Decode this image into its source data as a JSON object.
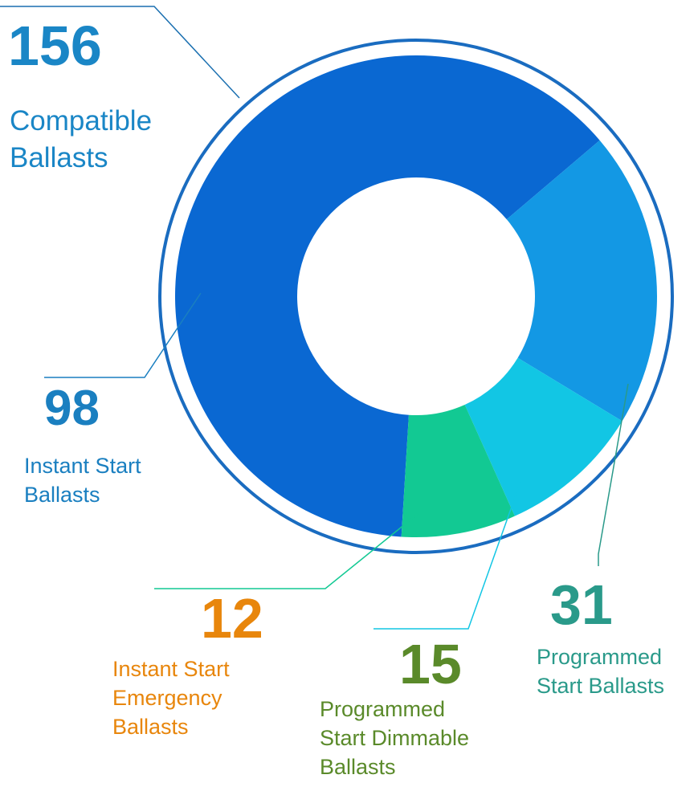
{
  "chart_data": {
    "type": "pie",
    "donut": true,
    "total": 156,
    "total_label": "Compatible Ballasts",
    "total_color": "#1a86c6",
    "categories": [
      "Instant Start Ballasts",
      "Programmed Start Ballasts",
      "Programmed Start Dimmable Ballasts",
      "Instant Start Emergency Ballasts"
    ],
    "values": [
      98,
      31,
      15,
      12
    ],
    "colors": [
      "#0a68d2",
      "#1398e4",
      "#12c6e4",
      "#12c993"
    ],
    "label_colors": [
      "#1a7fc0",
      "#2a9a8a",
      "#5a8a2a",
      "#e8860c"
    ]
  }
}
